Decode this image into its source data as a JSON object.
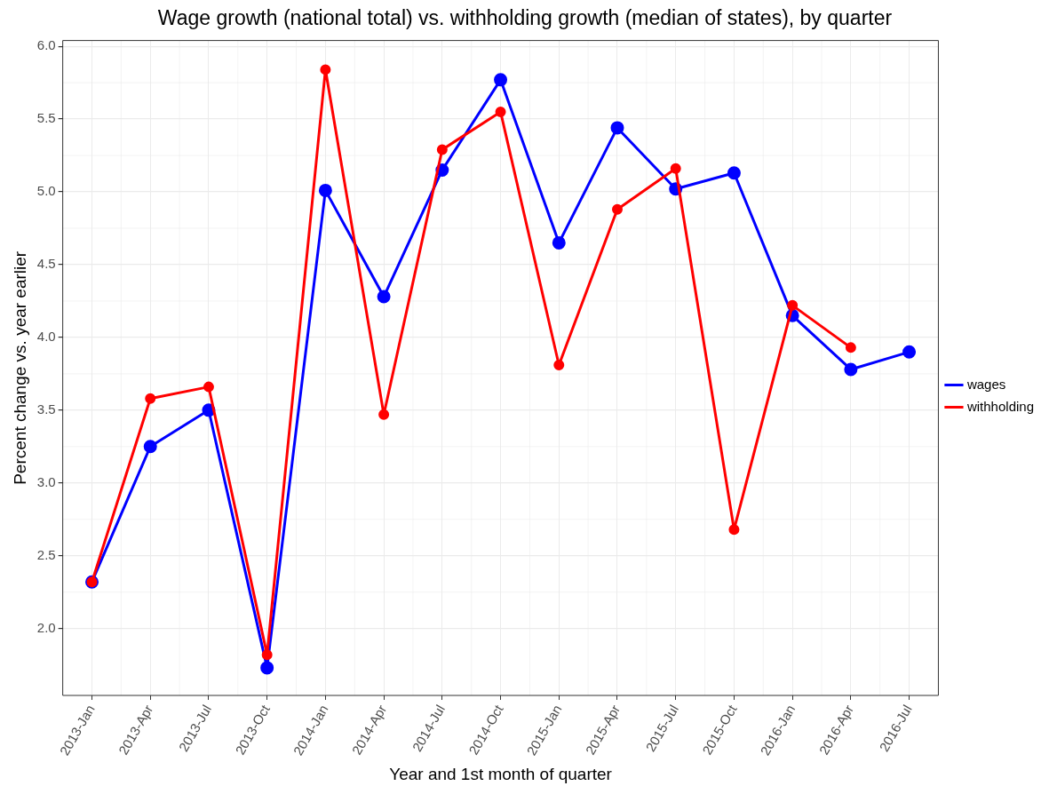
{
  "chart_data": {
    "type": "line",
    "title": "Wage growth (national total) vs. withholding growth (median of states), by quarter",
    "xlabel": "Year and 1st month of quarter",
    "ylabel": "Percent change vs. year earlier",
    "categories": [
      "2013-Jan",
      "2013-Apr",
      "2013-Jul",
      "2013-Oct",
      "2014-Jan",
      "2014-Apr",
      "2014-Jul",
      "2014-Oct",
      "2015-Jan",
      "2015-Apr",
      "2015-Jul",
      "2015-Oct",
      "2016-Jan",
      "2016-Apr",
      "2016-Jul"
    ],
    "series": [
      {
        "name": "wages",
        "color": "#0000ff",
        "values": [
          2.32,
          3.25,
          3.5,
          1.73,
          5.01,
          4.28,
          5.15,
          5.77,
          4.65,
          5.44,
          5.02,
          5.13,
          4.15,
          3.78,
          3.9
        ]
      },
      {
        "name": "withholding",
        "color": "#ff0000",
        "values": [
          2.32,
          3.58,
          3.66,
          1.82,
          5.84,
          3.47,
          5.29,
          5.55,
          3.81,
          4.88,
          5.16,
          2.68,
          4.22,
          3.93,
          null
        ]
      }
    ],
    "ylim": [
      1.54,
      6.04
    ],
    "yticks": [
      {
        "value": 2,
        "label": "2.0"
      },
      2.5,
      {
        "value": 3,
        "label": "3.0"
      },
      3.5,
      {
        "value": 4,
        "label": "4.0"
      },
      4.5,
      {
        "value": 5,
        "label": "5.0"
      },
      5.5,
      {
        "value": 6,
        "label": "6.0"
      }
    ],
    "grid": true,
    "legend": "right",
    "marker": "circle",
    "line_style": "solid"
  }
}
